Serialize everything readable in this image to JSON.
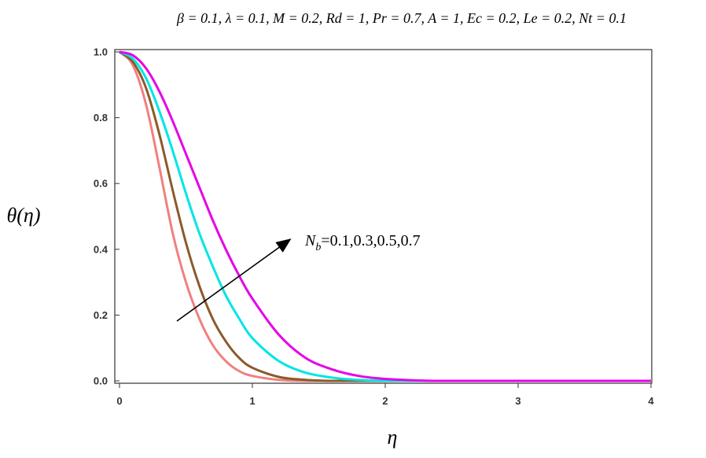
{
  "chart_data": {
    "type": "line",
    "title": "β = 0.1, λ = 0.1, M = 0.2, Rd = 1, Pr = 0.7, A = 1, Ec = 0.2, Le = 0.2, Nt = 0.1",
    "xlabel": "η",
    "ylabel": "θ(η)",
    "xlim": [
      0,
      4
    ],
    "ylim": [
      0,
      1
    ],
    "x_ticks": [
      "0",
      "1",
      "2",
      "3",
      "4"
    ],
    "y_ticks": [
      "0.0",
      "0.2",
      "0.4",
      "0.6",
      "0.8",
      "1.0"
    ],
    "grid": false,
    "x": [
      0,
      0.1,
      0.2,
      0.3,
      0.4,
      0.5,
      0.6,
      0.7,
      0.8,
      0.9,
      1.0,
      1.2,
      1.4,
      1.6,
      1.8,
      2.0,
      2.2,
      2.4,
      2.6,
      3.0,
      3.5,
      4.0
    ],
    "series": [
      {
        "color": "#f08080",
        "values": [
          1.0,
          0.96,
          0.84,
          0.65,
          0.45,
          0.3,
          0.19,
          0.11,
          0.06,
          0.03,
          0.015,
          0.003,
          0.0,
          0.0,
          0.0,
          0.0,
          0.0,
          0.0,
          0.0,
          0.0,
          0.0,
          0.0
        ]
      },
      {
        "color": "#8b5a2b",
        "values": [
          1.0,
          0.97,
          0.89,
          0.75,
          0.58,
          0.42,
          0.29,
          0.19,
          0.12,
          0.07,
          0.04,
          0.012,
          0.003,
          0.0,
          0.0,
          0.0,
          0.0,
          0.0,
          0.0,
          0.0,
          0.0,
          0.0
        ]
      },
      {
        "color": "#00e5e5",
        "values": [
          1.0,
          0.98,
          0.92,
          0.82,
          0.7,
          0.57,
          0.45,
          0.35,
          0.26,
          0.19,
          0.13,
          0.06,
          0.025,
          0.01,
          0.003,
          0.001,
          0.0,
          0.0,
          0.0,
          0.0,
          0.0,
          0.0
        ]
      },
      {
        "color": "#e600e6",
        "values": [
          1.0,
          0.99,
          0.95,
          0.88,
          0.79,
          0.69,
          0.59,
          0.49,
          0.4,
          0.32,
          0.25,
          0.14,
          0.07,
          0.035,
          0.015,
          0.006,
          0.002,
          0.0,
          0.0,
          0.0,
          0.0,
          0.0
        ]
      }
    ],
    "annotation": {
      "text": "=0.1,0.3,0.5,0.7",
      "symbol": "N",
      "subscript": "b"
    }
  }
}
